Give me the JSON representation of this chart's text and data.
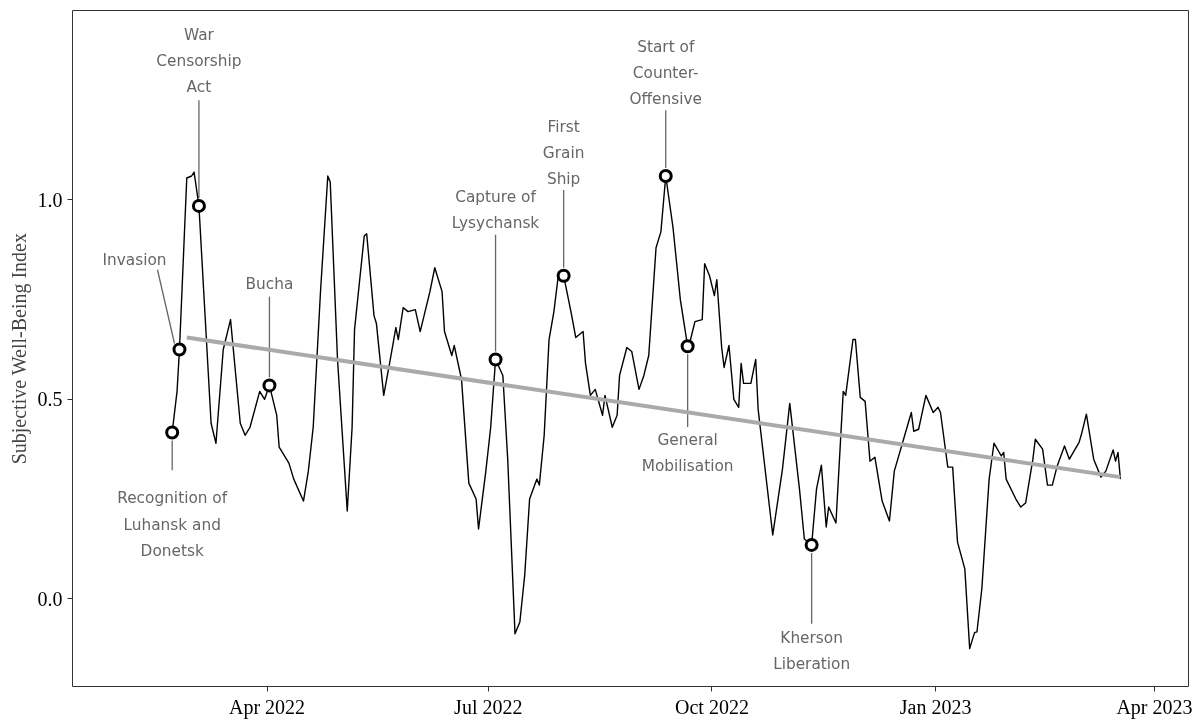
{
  "chart_data": {
    "type": "line",
    "ylabel": "Subjective Well-Being Index",
    "xlim": [
      "2022-01-11",
      "2023-04-15"
    ],
    "ylim": [
      -0.22,
      1.475
    ],
    "xticks": [
      {
        "value": "2022-04-01",
        "label": "Apr 2022"
      },
      {
        "value": "2022-07-01",
        "label": "Jul 2022"
      },
      {
        "value": "2022-10-01",
        "label": "Oct 2022"
      },
      {
        "value": "2023-01-01",
        "label": "Jan 2023"
      },
      {
        "value": "2023-04-01",
        "label": "Apr 2023"
      }
    ],
    "yticks": [
      {
        "value": 0,
        "label": "0.0"
      },
      {
        "value": 0.5,
        "label": "0.5"
      },
      {
        "value": 1,
        "label": "1.0"
      }
    ],
    "grid": false,
    "series": [
      {
        "color": "#000000",
        "x": [
          "2022-02-21",
          "2022-02-23",
          "2022-02-24",
          "2022-02-27",
          "2022-03-01",
          "2022-03-02",
          "2022-03-04",
          "2022-03-09",
          "2022-03-11",
          "2022-03-14",
          "2022-03-17",
          "2022-03-21",
          "2022-03-23",
          "2022-03-25",
          "2022-03-29",
          "2022-03-31",
          "2022-04-02",
          "2022-04-05",
          "2022-04-06",
          "2022-04-10",
          "2022-04-12",
          "2022-04-16",
          "2022-04-18",
          "2022-04-20",
          "2022-04-23",
          "2022-04-26",
          "2022-04-27",
          "2022-04-30",
          "2022-05-04",
          "2022-05-06",
          "2022-05-07",
          "2022-05-11",
          "2022-05-12",
          "2022-05-15",
          "2022-05-16",
          "2022-05-19",
          "2022-05-22",
          "2022-05-24",
          "2022-05-25",
          "2022-05-27",
          "2022-05-29",
          "2022-06-01",
          "2022-06-03",
          "2022-06-07",
          "2022-06-09",
          "2022-06-12",
          "2022-06-13",
          "2022-06-16",
          "2022-06-17",
          "2022-06-20",
          "2022-06-23",
          "2022-06-26",
          "2022-06-27",
          "2022-06-30",
          "2022-07-02",
          "2022-07-04",
          "2022-07-07",
          "2022-07-09",
          "2022-07-12",
          "2022-07-14",
          "2022-07-16",
          "2022-07-18",
          "2022-07-21",
          "2022-07-22",
          "2022-07-24",
          "2022-07-26",
          "2022-07-28",
          "2022-07-30",
          "2022-08-01",
          "2022-08-04",
          "2022-08-06",
          "2022-08-09",
          "2022-08-10",
          "2022-08-12",
          "2022-08-14",
          "2022-08-17",
          "2022-08-18",
          "2022-08-21",
          "2022-08-23",
          "2022-08-24",
          "2022-08-27",
          "2022-08-29",
          "2022-09-01",
          "2022-09-03",
          "2022-09-05",
          "2022-09-08",
          "2022-09-10",
          "2022-09-12",
          "2022-09-15",
          "2022-09-18",
          "2022-09-21",
          "2022-09-22",
          "2022-09-24",
          "2022-09-27",
          "2022-09-28",
          "2022-09-30",
          "2022-10-02",
          "2022-10-03",
          "2022-10-05",
          "2022-10-06",
          "2022-10-08",
          "2022-10-10",
          "2022-10-12",
          "2022-10-13",
          "2022-10-14",
          "2022-10-17",
          "2022-10-19",
          "2022-10-20",
          "2022-10-26",
          "2022-10-30",
          "2022-11-02",
          "2022-11-06",
          "2022-11-08",
          "2022-11-11",
          "2022-11-13",
          "2022-11-15",
          "2022-11-17",
          "2022-11-18",
          "2022-11-21",
          "2022-11-24",
          "2022-11-25",
          "2022-11-28",
          "2022-11-29",
          "2022-12-01",
          "2022-12-03",
          "2022-12-05",
          "2022-12-07",
          "2022-12-10",
          "2022-12-13",
          "2022-12-15",
          "2022-12-20",
          "2022-12-22",
          "2022-12-23",
          "2022-12-25",
          "2022-12-28",
          "2022-12-31",
          "2023-01-02",
          "2023-01-03",
          "2023-01-06",
          "2023-01-08",
          "2023-01-10",
          "2023-01-13",
          "2023-01-15",
          "2023-01-17",
          "2023-01-18",
          "2023-01-20",
          "2023-01-23",
          "2023-01-25",
          "2023-01-28",
          "2023-01-29",
          "2023-01-30",
          "2023-02-03",
          "2023-02-05",
          "2023-02-07",
          "2023-02-10",
          "2023-02-11",
          "2023-02-14",
          "2023-02-16",
          "2023-02-18",
          "2023-02-20",
          "2023-02-23",
          "2023-02-25",
          "2023-03-01",
          "2023-03-02",
          "2023-03-04",
          "2023-03-07",
          "2023-03-10",
          "2023-03-12",
          "2023-03-15",
          "2023-03-16",
          "2023-03-17",
          "2023-03-18"
        ],
        "values": [
          0.417,
          0.52,
          0.625,
          1.055,
          1.06,
          1.07,
          0.985,
          0.44,
          0.39,
          0.625,
          0.7,
          0.44,
          0.41,
          0.43,
          0.52,
          0.5,
          0.535,
          0.46,
          0.38,
          0.34,
          0.3,
          0.245,
          0.32,
          0.43,
          0.77,
          1.06,
          1.045,
          0.6,
          0.22,
          0.43,
          0.675,
          0.91,
          0.915,
          0.71,
          0.69,
          0.51,
          0.61,
          0.68,
          0.65,
          0.73,
          0.72,
          0.725,
          0.67,
          0.77,
          0.83,
          0.77,
          0.67,
          0.61,
          0.635,
          0.55,
          0.29,
          0.25,
          0.175,
          0.32,
          0.43,
          0.6,
          0.56,
          0.35,
          -0.088,
          -0.058,
          0.06,
          0.25,
          0.3,
          0.285,
          0.41,
          0.65,
          0.72,
          0.82,
          0.81,
          0.72,
          0.655,
          0.67,
          0.59,
          0.51,
          0.525,
          0.46,
          0.51,
          0.43,
          0.46,
          0.56,
          0.63,
          0.62,
          0.525,
          0.56,
          0.61,
          0.88,
          0.92,
          1.06,
          0.93,
          0.75,
          0.633,
          0.645,
          0.695,
          0.7,
          0.84,
          0.81,
          0.76,
          0.8,
          0.63,
          0.58,
          0.635,
          0.5,
          0.48,
          0.59,
          0.54,
          0.54,
          0.6,
          0.475,
          0.16,
          0.325,
          0.49,
          0.275,
          0.15,
          0.135,
          0.275,
          0.335,
          0.18,
          0.23,
          0.19,
          0.52,
          0.51,
          0.65,
          0.65,
          0.505,
          0.495,
          0.345,
          0.355,
          0.245,
          0.195,
          0.32,
          0.425,
          0.467,
          0.42,
          0.425,
          0.51,
          0.467,
          0.48,
          0.467,
          0.33,
          0.33,
          0.142,
          0.075,
          -0.125,
          -0.085,
          -0.083,
          0.025,
          0.3,
          0.39,
          0.358,
          0.367,
          0.3,
          0.25,
          0.23,
          0.24,
          0.35,
          0.4,
          0.375,
          0.285,
          0.285,
          0.333,
          0.383,
          0.35,
          0.392,
          0.413,
          0.463,
          0.35,
          0.305,
          0.32,
          0.373,
          0.345,
          0.367,
          0.3
        ]
      },
      {
        "color": "#aaaaaa",
        "x": [
          "2022-02-27",
          "2023-03-18"
        ],
        "values": [
          0.655,
          0.305
        ]
      },
      {
        "type": "scatter",
        "color": "#000000",
        "marker": "circle",
        "x": [
          "2022-02-21",
          "2022-02-24",
          "2022-03-04",
          "2022-04-02",
          "2022-07-04",
          "2022-08-01",
          "2022-09-12",
          "2022-09-21",
          "2022-11-11"
        ],
        "values": [
          0.417,
          0.625,
          0.985,
          0.535,
          0.6,
          0.81,
          1.06,
          0.633,
          0.135
        ]
      }
    ],
    "annotations": [
      {
        "text": "Recognition of\nLuhansk and\nDonetsk",
        "x": "2022-02-21",
        "y": 0.417
      },
      {
        "text": "Invasion",
        "x": "2022-02-24",
        "y": 0.625
      },
      {
        "text": "War\nCensorship\nAct",
        "x": "2022-03-04",
        "y": 0.985
      },
      {
        "text": "Bucha",
        "x": "2022-04-02",
        "y": 0.535
      },
      {
        "text": "Capture of\nLysychansk",
        "x": "2022-07-04",
        "y": 0.6
      },
      {
        "text": "First\nGrain\nShip",
        "x": "2022-08-01",
        "y": 0.81
      },
      {
        "text": "Start of\nCounter-\nOffensive",
        "x": "2022-09-12",
        "y": 1.06
      },
      {
        "text": "General\nMobilisation",
        "x": "2022-09-21",
        "y": 0.633
      },
      {
        "text": "Kherson\nLiberation",
        "x": "2022-11-11",
        "y": 0.135
      }
    ]
  }
}
